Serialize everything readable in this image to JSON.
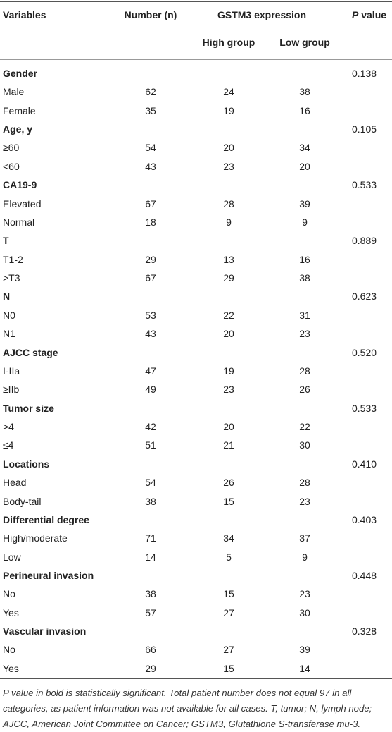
{
  "header": {
    "variables": "Variables",
    "number": "Number (n)",
    "expression": "GSTM3 expression",
    "high": "High group",
    "low": "Low group",
    "p_symbol": "P",
    "p_label": "value"
  },
  "groups": [
    {
      "name": "Gender",
      "p": "0.138",
      "rows": [
        [
          "Male",
          "62",
          "24",
          "38"
        ],
        [
          "Female",
          "35",
          "19",
          "16"
        ]
      ]
    },
    {
      "name": "Age, y",
      "p": "0.105",
      "rows": [
        [
          "≥60",
          "54",
          "20",
          "34"
        ],
        [
          "<60",
          "43",
          "23",
          "20"
        ]
      ]
    },
    {
      "name": "CA19-9",
      "p": "0.533",
      "rows": [
        [
          "Elevated",
          "67",
          "28",
          "39"
        ],
        [
          "Normal",
          "18",
          "9",
          "9"
        ]
      ]
    },
    {
      "name": "T",
      "p": "0.889",
      "rows": [
        [
          "T1-2",
          "29",
          "13",
          "16"
        ],
        [
          ">T3",
          "67",
          "29",
          "38"
        ]
      ]
    },
    {
      "name": "N",
      "p": "0.623",
      "rows": [
        [
          "N0",
          "53",
          "22",
          "31"
        ],
        [
          "N1",
          "43",
          "20",
          "23"
        ]
      ]
    },
    {
      "name": "AJCC stage",
      "p": "0.520",
      "rows": [
        [
          "I-IIa",
          "47",
          "19",
          "28"
        ],
        [
          "≥IIb",
          "49",
          "23",
          "26"
        ]
      ]
    },
    {
      "name": "Tumor size",
      "p": "0.533",
      "rows": [
        [
          ">4",
          "42",
          "20",
          "22"
        ],
        [
          "≤4",
          "51",
          "21",
          "30"
        ]
      ]
    },
    {
      "name": "Locations",
      "p": "0.410",
      "rows": [
        [
          "Head",
          "54",
          "26",
          "28"
        ],
        [
          "Body-tail",
          "38",
          "15",
          "23"
        ]
      ]
    },
    {
      "name": "Differential degree",
      "p": "0.403",
      "rows": [
        [
          "High/moderate",
          "71",
          "34",
          "37"
        ],
        [
          "Low",
          "14",
          "5",
          "9"
        ]
      ]
    },
    {
      "name": "Perineural invasion",
      "p": "0.448",
      "rows": [
        [
          "No",
          "38",
          "15",
          "23"
        ],
        [
          "Yes",
          "57",
          "27",
          "30"
        ]
      ]
    },
    {
      "name": "Vascular invasion",
      "p": "0.328",
      "rows": [
        [
          "No",
          "66",
          "27",
          "39"
        ],
        [
          "Yes",
          "29",
          "15",
          "14"
        ]
      ]
    }
  ],
  "footnote": "P value in bold is statistically significant. Total patient number does not equal 97 in all categories, as patient information was not available for all cases. T, tumor; N, lymph node; AJCC, American Joint Committee on Cancer; GSTM3, Glutathione S-transferase mu-3."
}
